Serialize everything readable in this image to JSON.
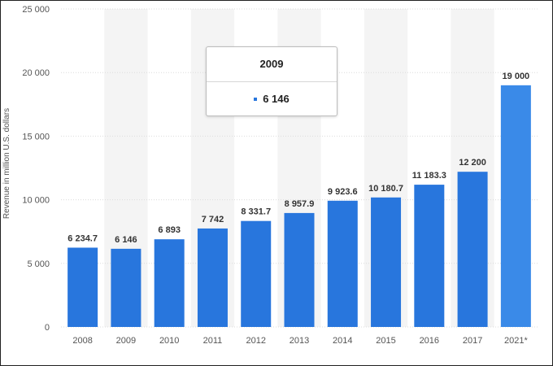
{
  "chart_data": {
    "type": "bar",
    "categories": [
      "2008",
      "2009",
      "2010",
      "2011",
      "2012",
      "2013",
      "2014",
      "2015",
      "2016",
      "2017",
      "2021*"
    ],
    "values": [
      6234.7,
      6146,
      6893,
      7742,
      8331.7,
      8957.9,
      9923.6,
      10180.7,
      11183.3,
      12200,
      19000
    ],
    "value_labels": [
      "6 234.7",
      "6 146",
      "6 893",
      "7 742",
      "8 331.7",
      "8 957.9",
      "9 923.6",
      "10 180.7",
      "11 183.3",
      "12 200",
      "19 000"
    ],
    "ylabel": "Revenue in million U.S. dollars",
    "xlabel": "",
    "ylim": [
      0,
      25000
    ],
    "yticks": [
      0,
      5000,
      10000,
      15000,
      20000,
      25000
    ],
    "ytick_labels": [
      "0",
      "5 000",
      "10 000",
      "15 000",
      "20 000",
      "25 000"
    ],
    "grid": true,
    "colors": {
      "bar": "#2876dd",
      "bar_forecast": "#3a8ae8",
      "band": "#f4f4f4",
      "grid": "#dcdcdc"
    }
  },
  "tooltip": {
    "title": "2009",
    "value": "6 146"
  }
}
